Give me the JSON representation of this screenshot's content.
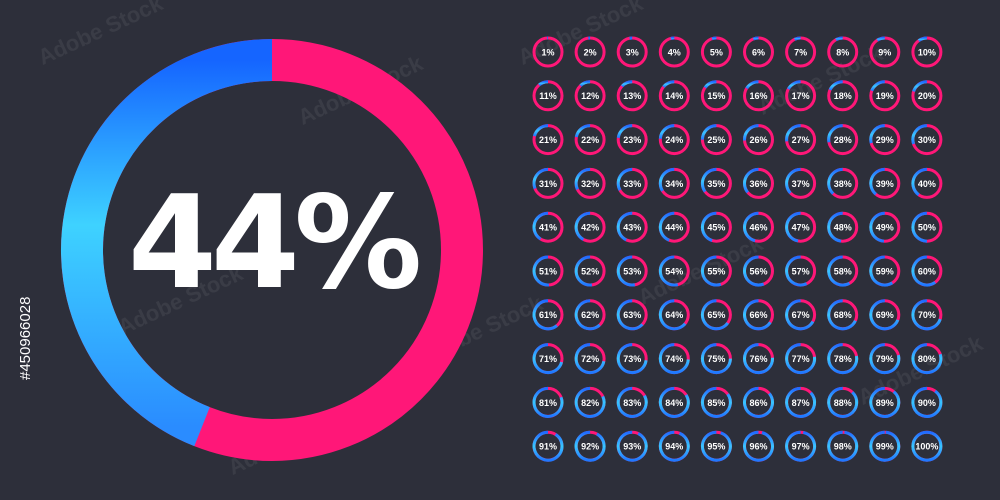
{
  "main": {
    "value": 44,
    "label": "44%"
  },
  "watermark": "Adobe Stock",
  "stock_id": "#450966028",
  "gauges": [
    {
      "value": 1,
      "label": "1%"
    },
    {
      "value": 2,
      "label": "2%"
    },
    {
      "value": 3,
      "label": "3%"
    },
    {
      "value": 4,
      "label": "4%"
    },
    {
      "value": 5,
      "label": "5%"
    },
    {
      "value": 6,
      "label": "6%"
    },
    {
      "value": 7,
      "label": "7%"
    },
    {
      "value": 8,
      "label": "8%"
    },
    {
      "value": 9,
      "label": "9%"
    },
    {
      "value": 10,
      "label": "10%"
    },
    {
      "value": 11,
      "label": "11%"
    },
    {
      "value": 12,
      "label": "12%"
    },
    {
      "value": 13,
      "label": "13%"
    },
    {
      "value": 14,
      "label": "14%"
    },
    {
      "value": 15,
      "label": "15%"
    },
    {
      "value": 16,
      "label": "16%"
    },
    {
      "value": 17,
      "label": "17%"
    },
    {
      "value": 18,
      "label": "18%"
    },
    {
      "value": 19,
      "label": "19%"
    },
    {
      "value": 20,
      "label": "20%"
    },
    {
      "value": 21,
      "label": "21%"
    },
    {
      "value": 22,
      "label": "22%"
    },
    {
      "value": 23,
      "label": "23%"
    },
    {
      "value": 24,
      "label": "24%"
    },
    {
      "value": 25,
      "label": "25%"
    },
    {
      "value": 26,
      "label": "26%"
    },
    {
      "value": 27,
      "label": "27%"
    },
    {
      "value": 28,
      "label": "28%"
    },
    {
      "value": 29,
      "label": "29%"
    },
    {
      "value": 30,
      "label": "30%"
    },
    {
      "value": 31,
      "label": "31%"
    },
    {
      "value": 32,
      "label": "32%"
    },
    {
      "value": 33,
      "label": "33%"
    },
    {
      "value": 34,
      "label": "34%"
    },
    {
      "value": 35,
      "label": "35%"
    },
    {
      "value": 36,
      "label": "36%"
    },
    {
      "value": 37,
      "label": "37%"
    },
    {
      "value": 38,
      "label": "38%"
    },
    {
      "value": 39,
      "label": "39%"
    },
    {
      "value": 40,
      "label": "40%"
    },
    {
      "value": 41,
      "label": "41%"
    },
    {
      "value": 42,
      "label": "42%"
    },
    {
      "value": 43,
      "label": "43%"
    },
    {
      "value": 44,
      "label": "44%"
    },
    {
      "value": 45,
      "label": "45%"
    },
    {
      "value": 46,
      "label": "46%"
    },
    {
      "value": 47,
      "label": "47%"
    },
    {
      "value": 48,
      "label": "48%"
    },
    {
      "value": 49,
      "label": "49%"
    },
    {
      "value": 50,
      "label": "50%"
    },
    {
      "value": 51,
      "label": "51%"
    },
    {
      "value": 52,
      "label": "52%"
    },
    {
      "value": 53,
      "label": "53%"
    },
    {
      "value": 54,
      "label": "54%"
    },
    {
      "value": 55,
      "label": "55%"
    },
    {
      "value": 56,
      "label": "56%"
    },
    {
      "value": 57,
      "label": "57%"
    },
    {
      "value": 58,
      "label": "58%"
    },
    {
      "value": 59,
      "label": "59%"
    },
    {
      "value": 60,
      "label": "60%"
    },
    {
      "value": 61,
      "label": "61%"
    },
    {
      "value": 62,
      "label": "62%"
    },
    {
      "value": 63,
      "label": "63%"
    },
    {
      "value": 64,
      "label": "64%"
    },
    {
      "value": 65,
      "label": "65%"
    },
    {
      "value": 66,
      "label": "66%"
    },
    {
      "value": 67,
      "label": "67%"
    },
    {
      "value": 68,
      "label": "68%"
    },
    {
      "value": 69,
      "label": "69%"
    },
    {
      "value": 70,
      "label": "70%"
    },
    {
      "value": 71,
      "label": "71%"
    },
    {
      "value": 72,
      "label": "72%"
    },
    {
      "value": 73,
      "label": "73%"
    },
    {
      "value": 74,
      "label": "74%"
    },
    {
      "value": 75,
      "label": "75%"
    },
    {
      "value": 76,
      "label": "76%"
    },
    {
      "value": 77,
      "label": "77%"
    },
    {
      "value": 78,
      "label": "78%"
    },
    {
      "value": 79,
      "label": "79%"
    },
    {
      "value": 80,
      "label": "80%"
    },
    {
      "value": 81,
      "label": "81%"
    },
    {
      "value": 82,
      "label": "82%"
    },
    {
      "value": 83,
      "label": "83%"
    },
    {
      "value": 84,
      "label": "84%"
    },
    {
      "value": 85,
      "label": "85%"
    },
    {
      "value": 86,
      "label": "86%"
    },
    {
      "value": 87,
      "label": "87%"
    },
    {
      "value": 88,
      "label": "88%"
    },
    {
      "value": 89,
      "label": "89%"
    },
    {
      "value": 90,
      "label": "90%"
    },
    {
      "value": 91,
      "label": "91%"
    },
    {
      "value": 92,
      "label": "92%"
    },
    {
      "value": 93,
      "label": "93%"
    },
    {
      "value": 94,
      "label": "94%"
    },
    {
      "value": 95,
      "label": "95%"
    },
    {
      "value": 96,
      "label": "96%"
    },
    {
      "value": 97,
      "label": "97%"
    },
    {
      "value": 98,
      "label": "98%"
    },
    {
      "value": 99,
      "label": "99%"
    },
    {
      "value": 100,
      "label": "100%"
    }
  ]
}
